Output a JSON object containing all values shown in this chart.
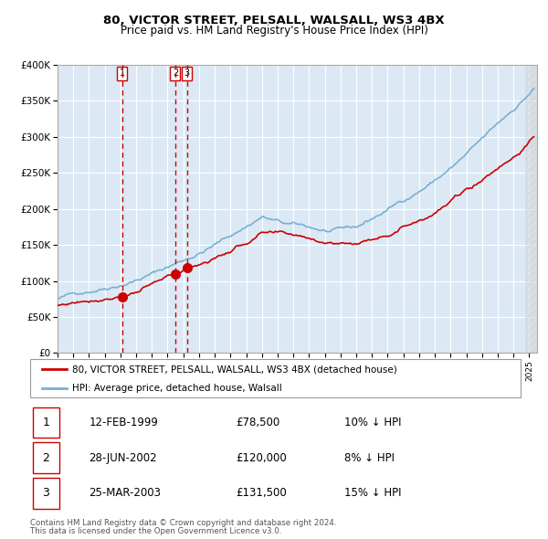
{
  "title": "80, VICTOR STREET, PELSALL, WALSALL, WS3 4BX",
  "subtitle": "Price paid vs. HM Land Registry's House Price Index (HPI)",
  "legend_property": "80, VICTOR STREET, PELSALL, WALSALL, WS3 4BX (detached house)",
  "legend_hpi": "HPI: Average price, detached house, Walsall",
  "footer1": "Contains HM Land Registry data © Crown copyright and database right 2024.",
  "footer2": "This data is licensed under the Open Government Licence v3.0.",
  "transactions": [
    {
      "label": "1",
      "date": "12-FEB-1999",
      "price": 78500,
      "pct": "10%",
      "dir": "↓",
      "x_year": 1999.12
    },
    {
      "label": "2",
      "date": "28-JUN-2002",
      "price": 120000,
      "pct": "8%",
      "dir": "↓",
      "x_year": 2002.49
    },
    {
      "label": "3",
      "date": "25-MAR-2003",
      "price": 131500,
      "pct": "15%",
      "dir": "↓",
      "x_year": 2003.23
    }
  ],
  "vline_x": [
    1999.12,
    2002.49,
    2003.23
  ],
  "ylim": [
    0,
    400000
  ],
  "xlim": [
    1995.0,
    2025.5
  ],
  "hatch_start": 2024.75,
  "background_color": "#dce9f5",
  "plot_bg": "#dce9f5",
  "grid_color": "#ffffff",
  "red_line_color": "#cc0000",
  "blue_line_color": "#7aafd4",
  "vline_color": "#cc0000",
  "dot_color": "#cc0000",
  "label_box_color": "#ffffff",
  "label_box_edge": "#cc0000"
}
